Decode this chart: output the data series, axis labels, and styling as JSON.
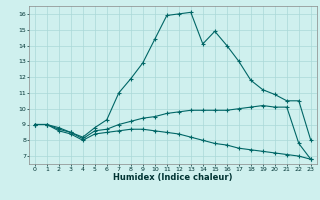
{
  "xlabel": "Humidex (Indice chaleur)",
  "ylabel": "",
  "xlim": [
    -0.5,
    23.5
  ],
  "ylim": [
    6.5,
    16.5
  ],
  "yticks": [
    7,
    8,
    9,
    10,
    11,
    12,
    13,
    14,
    15,
    16
  ],
  "xticks": [
    0,
    1,
    2,
    3,
    4,
    5,
    6,
    7,
    8,
    9,
    10,
    11,
    12,
    13,
    14,
    15,
    16,
    17,
    18,
    19,
    20,
    21,
    22,
    23
  ],
  "bg_color": "#cff0ee",
  "grid_color": "#aad8d8",
  "line_color": "#006666",
  "line1_x": [
    0,
    1,
    2,
    3,
    4,
    5,
    6,
    7,
    8,
    9,
    10,
    11,
    12,
    13,
    14,
    15,
    16,
    17,
    18,
    19,
    20,
    21,
    22,
    23
  ],
  "line1_y": [
    9.0,
    9.0,
    8.8,
    8.5,
    8.2,
    8.8,
    9.3,
    11.0,
    11.9,
    12.9,
    14.4,
    15.9,
    16.0,
    16.1,
    14.1,
    14.9,
    14.0,
    13.0,
    11.8,
    11.2,
    10.9,
    10.5,
    10.5,
    8.0
  ],
  "line2_x": [
    0,
    1,
    2,
    3,
    4,
    5,
    6,
    7,
    8,
    9,
    10,
    11,
    12,
    13,
    14,
    15,
    16,
    17,
    18,
    19,
    20,
    21,
    22,
    23
  ],
  "line2_y": [
    9.0,
    9.0,
    8.7,
    8.5,
    8.1,
    8.6,
    8.7,
    9.0,
    9.2,
    9.4,
    9.5,
    9.7,
    9.8,
    9.9,
    9.9,
    9.9,
    9.9,
    10.0,
    10.1,
    10.2,
    10.1,
    10.1,
    7.8,
    6.8
  ],
  "line3_x": [
    0,
    1,
    2,
    3,
    4,
    5,
    6,
    7,
    8,
    9,
    10,
    11,
    12,
    13,
    14,
    15,
    16,
    17,
    18,
    19,
    20,
    21,
    22,
    23
  ],
  "line3_y": [
    9.0,
    9.0,
    8.6,
    8.4,
    8.0,
    8.4,
    8.5,
    8.6,
    8.7,
    8.7,
    8.6,
    8.5,
    8.4,
    8.2,
    8.0,
    7.8,
    7.7,
    7.5,
    7.4,
    7.3,
    7.2,
    7.1,
    7.0,
    6.8
  ]
}
